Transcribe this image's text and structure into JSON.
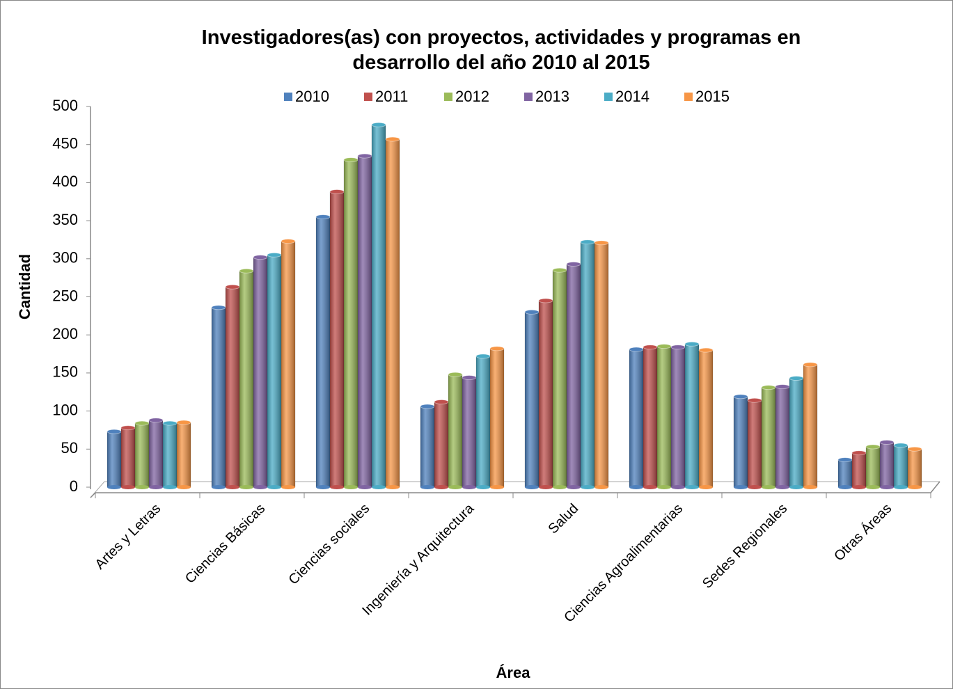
{
  "chart_data": {
    "type": "bar",
    "title": "Investigadores(as) con proyectos, actividades y programas en desarrollo del año 2010 al 2015",
    "xlabel": "Área",
    "ylabel": "Cantidad",
    "categories": [
      "Artes y Letras",
      "Ciencias Básicas",
      "Ciencias sociales",
      "Ingeniería y Arquitectura",
      "Salud",
      "Ciencias Agroalimentarias",
      "Sedes Regionales",
      "Otras Áreas"
    ],
    "series": [
      {
        "name": "2010",
        "color": "#4f81bd",
        "values": [
          73,
          236,
          355,
          106,
          230,
          181,
          119,
          36
        ]
      },
      {
        "name": "2011",
        "color": "#c0504d",
        "values": [
          78,
          263,
          388,
          112,
          245,
          184,
          114,
          45
        ]
      },
      {
        "name": "2012",
        "color": "#9bbb59",
        "values": [
          84,
          284,
          430,
          148,
          285,
          185,
          131,
          53
        ]
      },
      {
        "name": "2013",
        "color": "#8064a2",
        "values": [
          88,
          302,
          435,
          144,
          293,
          184,
          132,
          59
        ]
      },
      {
        "name": "2014",
        "color": "#4bacc6",
        "values": [
          84,
          305,
          476,
          172,
          322,
          188,
          143,
          55
        ]
      },
      {
        "name": "2015",
        "color": "#f79646",
        "values": [
          85,
          323,
          457,
          182,
          321,
          180,
          161,
          50
        ]
      }
    ],
    "ylim": [
      0,
      500
    ],
    "yticks": [
      0,
      50,
      100,
      150,
      200,
      250,
      300,
      350,
      400,
      450,
      500
    ],
    "legend": "top"
  }
}
